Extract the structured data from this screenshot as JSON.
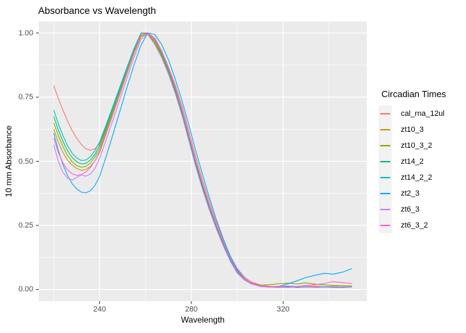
{
  "title": "Absorbance vs Wavelength",
  "chart_data": {
    "type": "line",
    "title": "Absorbance vs Wavelength",
    "xlabel": "Wavelength",
    "ylabel": "10 mm Absorbance",
    "legend_title": "Circadian Times",
    "legend_position": "right",
    "grid": true,
    "panel_bg": "#EBEBEB",
    "grid_major_color": "#FFFFFF",
    "grid_minor_color": "#FFFFFF",
    "tick_color": "#333333",
    "tick_label_color": "#4D4D4D",
    "xlim": [
      213.5,
      356.5
    ],
    "ylim": [
      -0.045,
      1.045
    ],
    "x_major_ticks": [
      240,
      280,
      320
    ],
    "x_tick_labels": [
      "240",
      "280",
      "320"
    ],
    "x_minor_ticks": [
      220,
      260,
      300,
      340
    ],
    "y_major_ticks": [
      0.0,
      0.25,
      0.5,
      0.75,
      1.0
    ],
    "y_tick_labels": [
      "0.00",
      "0.25",
      "0.50",
      "0.75",
      "1.00"
    ],
    "y_minor_ticks": [
      0.125,
      0.375,
      0.625,
      0.875
    ],
    "x": [
      220,
      222,
      224,
      226,
      228,
      230,
      232,
      234,
      236,
      238,
      240,
      243,
      246,
      249,
      252,
      255,
      258,
      261,
      264,
      267,
      270,
      273,
      276,
      279,
      282,
      285,
      288,
      291,
      294,
      297,
      300,
      303,
      306,
      310,
      314,
      318,
      322,
      326,
      330,
      334,
      338,
      342,
      346,
      350
    ],
    "series": [
      {
        "name": "cal_rna_12ul",
        "color": "#F8766D",
        "values": [
          0.795,
          0.745,
          0.7,
          0.658,
          0.62,
          0.59,
          0.566,
          0.549,
          0.543,
          0.549,
          0.568,
          0.64,
          0.712,
          0.786,
          0.856,
          0.926,
          0.985,
          1.0,
          0.982,
          0.932,
          0.868,
          0.798,
          0.713,
          0.615,
          0.515,
          0.424,
          0.34,
          0.26,
          0.19,
          0.13,
          0.082,
          0.05,
          0.03,
          0.018,
          0.013,
          0.011,
          0.013,
          0.01,
          0.012,
          0.014,
          0.011,
          0.013,
          0.01,
          0.012
        ]
      },
      {
        "name": "zt10_3",
        "color": "#CD9600",
        "values": [
          0.625,
          0.575,
          0.535,
          0.505,
          0.485,
          0.472,
          0.465,
          0.468,
          0.48,
          0.502,
          0.535,
          0.61,
          0.688,
          0.765,
          0.843,
          0.92,
          0.985,
          0.997,
          0.968,
          0.915,
          0.848,
          0.773,
          0.685,
          0.585,
          0.485,
          0.395,
          0.313,
          0.24,
          0.173,
          0.115,
          0.068,
          0.04,
          0.024,
          0.013,
          0.01,
          0.008,
          0.01,
          0.009,
          0.011,
          0.008,
          0.01,
          0.009,
          0.008,
          0.01
        ]
      },
      {
        "name": "zt10_3_2",
        "color": "#7CAE00",
        "values": [
          0.65,
          0.6,
          0.558,
          0.523,
          0.498,
          0.483,
          0.477,
          0.48,
          0.493,
          0.517,
          0.55,
          0.625,
          0.7,
          0.776,
          0.852,
          0.927,
          0.99,
          0.995,
          0.962,
          0.91,
          0.845,
          0.77,
          0.68,
          0.58,
          0.48,
          0.39,
          0.31,
          0.238,
          0.172,
          0.112,
          0.066,
          0.04,
          0.026,
          0.017,
          0.019,
          0.023,
          0.025,
          0.022,
          0.026,
          0.021,
          0.018,
          0.016,
          0.015,
          0.014
        ]
      },
      {
        "name": "zt14_2",
        "color": "#00BE67",
        "values": [
          0.675,
          0.622,
          0.578,
          0.542,
          0.515,
          0.498,
          0.49,
          0.492,
          0.505,
          0.528,
          0.562,
          0.634,
          0.71,
          0.785,
          0.86,
          0.933,
          0.995,
          1.0,
          0.972,
          0.92,
          0.855,
          0.78,
          0.69,
          0.59,
          0.49,
          0.4,
          0.318,
          0.244,
          0.177,
          0.117,
          0.07,
          0.042,
          0.026,
          0.014,
          0.01,
          0.009,
          0.011,
          0.008,
          0.01,
          0.009,
          0.011,
          0.008,
          0.009,
          0.01
        ]
      },
      {
        "name": "zt14_2_2",
        "color": "#00BFC4",
        "values": [
          0.7,
          0.646,
          0.6,
          0.562,
          0.532,
          0.513,
          0.503,
          0.505,
          0.518,
          0.542,
          0.576,
          0.646,
          0.72,
          0.794,
          0.868,
          0.94,
          1.0,
          1.0,
          0.976,
          0.926,
          0.86,
          0.786,
          0.696,
          0.596,
          0.496,
          0.406,
          0.323,
          0.249,
          0.181,
          0.121,
          0.072,
          0.043,
          0.026,
          0.014,
          0.01,
          0.009,
          0.01,
          0.009,
          0.011,
          0.009,
          0.01,
          0.008,
          0.01,
          0.009
        ]
      },
      {
        "name": "zt2_3",
        "color": "#00A9FF",
        "values": [
          0.61,
          0.543,
          0.488,
          0.445,
          0.413,
          0.392,
          0.38,
          0.377,
          0.385,
          0.406,
          0.442,
          0.523,
          0.61,
          0.7,
          0.79,
          0.876,
          0.952,
          1.0,
          0.995,
          0.956,
          0.896,
          0.82,
          0.734,
          0.638,
          0.538,
          0.445,
          0.355,
          0.27,
          0.196,
          0.13,
          0.078,
          0.045,
          0.025,
          0.012,
          0.009,
          0.012,
          0.022,
          0.034,
          0.047,
          0.056,
          0.063,
          0.06,
          0.068,
          0.082
        ]
      },
      {
        "name": "zt6_3",
        "color": "#C77CFF",
        "values": [
          0.565,
          0.5,
          0.457,
          0.434,
          0.427,
          0.437,
          0.447,
          0.442,
          0.45,
          0.473,
          0.512,
          0.588,
          0.666,
          0.746,
          0.826,
          0.905,
          0.975,
          0.995,
          0.956,
          0.905,
          0.84,
          0.764,
          0.676,
          0.576,
          0.476,
          0.386,
          0.306,
          0.234,
          0.168,
          0.11,
          0.064,
          0.038,
          0.022,
          0.012,
          0.009,
          0.01,
          0.008,
          0.011,
          0.009,
          0.01,
          0.012,
          0.009,
          0.011,
          0.01
        ]
      },
      {
        "name": "zt6_3_2",
        "color": "#FF61CC",
        "values": [
          0.59,
          0.535,
          0.494,
          0.467,
          0.451,
          0.445,
          0.448,
          0.458,
          0.476,
          0.502,
          0.54,
          0.616,
          0.694,
          0.773,
          0.852,
          0.928,
          0.995,
          1.0,
          0.974,
          0.928,
          0.864,
          0.788,
          0.7,
          0.6,
          0.5,
          0.41,
          0.326,
          0.25,
          0.182,
          0.122,
          0.072,
          0.043,
          0.026,
          0.014,
          0.011,
          0.013,
          0.014,
          0.012,
          0.016,
          0.019,
          0.024,
          0.031,
          0.027,
          0.024
        ]
      }
    ]
  }
}
